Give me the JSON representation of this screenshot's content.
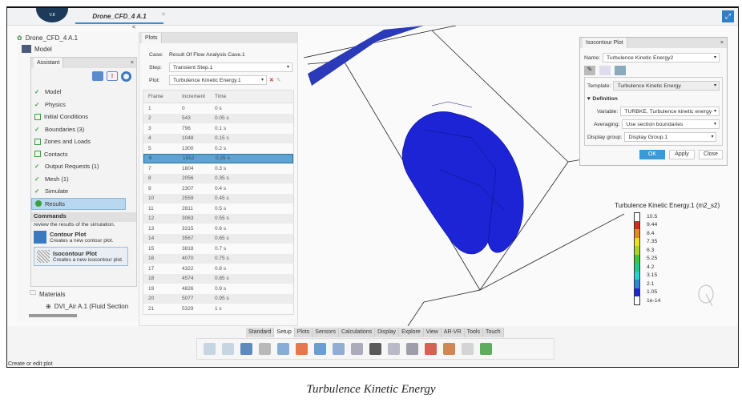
{
  "app": {
    "logo_text": "V.8",
    "document_tab": "Drone_CFD_4 A.1",
    "new_tab": "+",
    "collapse": "<",
    "status": "Create or edit plot"
  },
  "tree": {
    "root": "Drone_CFD_4 A.1",
    "model": "Model",
    "materials": "Materials",
    "material_item": "DVI_Air A.1 (Fluid Section"
  },
  "assistant": {
    "title": "Assistant",
    "close": "×",
    "steps": [
      {
        "label": "Model",
        "state": "done"
      },
      {
        "label": "Physics",
        "state": "done"
      },
      {
        "label": "Initial Conditions",
        "state": "todo"
      },
      {
        "label": "Boundaries (3)",
        "state": "done"
      },
      {
        "label": "Zones and Loads",
        "state": "todo"
      },
      {
        "label": "Contacts",
        "state": "todo"
      },
      {
        "label": "Output Requests (1)",
        "state": "done"
      },
      {
        "label": "Mesh (1)",
        "state": "done"
      },
      {
        "label": "Simulate",
        "state": "done"
      },
      {
        "label": "Results",
        "state": "active"
      }
    ],
    "commands_title": "Commands",
    "commands_desc": "review the results of the simulation.",
    "commands": [
      {
        "title": "Contour Plot",
        "desc": "Creates a new contour plot."
      },
      {
        "title": "Isocontour Plot",
        "desc": "Creates a new isocontour plot."
      }
    ]
  },
  "plots": {
    "tab": "Plots",
    "case_label": "Case:",
    "case_value": "Result Of Flow Analysis Case.1",
    "step_label": "Step:",
    "step_value": "Transient Step.1",
    "plot_label": "Plot:",
    "plot_value": "Turbulence Kinetic Energy.1",
    "columns": [
      "Frame",
      "Increment",
      "Time"
    ],
    "selected_frame": "6",
    "rows": [
      [
        "1",
        "0",
        "0 s"
      ],
      [
        "2",
        "543",
        "0.05 s"
      ],
      [
        "3",
        "796",
        "0.1 s"
      ],
      [
        "4",
        "1048",
        "0.15 s"
      ],
      [
        "5",
        "1300",
        "0.2 s"
      ],
      [
        "6",
        "1552",
        "0.25 s"
      ],
      [
        "7",
        "1804",
        "0.3 s"
      ],
      [
        "8",
        "2056",
        "0.35 s"
      ],
      [
        "9",
        "2307",
        "0.4 s"
      ],
      [
        "10",
        "2559",
        "0.45 s"
      ],
      [
        "11",
        "2811",
        "0.5 s"
      ],
      [
        "12",
        "3063",
        "0.55 s"
      ],
      [
        "13",
        "3315",
        "0.6 s"
      ],
      [
        "14",
        "3567",
        "0.65 s"
      ],
      [
        "15",
        "3818",
        "0.7 s"
      ],
      [
        "16",
        "4070",
        "0.75 s"
      ],
      [
        "17",
        "4322",
        "0.8 s"
      ],
      [
        "18",
        "4574",
        "0.85 s"
      ],
      [
        "19",
        "4826",
        "0.9 s"
      ],
      [
        "20",
        "5077",
        "0.95 s"
      ],
      [
        "21",
        "5329",
        "1 s"
      ]
    ]
  },
  "isocontour": {
    "title": "Isocontour Plot",
    "close": "×",
    "name_label": "Name:",
    "name_value": "Turbulence Kinetic Energy2",
    "template_label": "Template:",
    "template_value": "Turbulence Kinetic Energy",
    "definition": "Definition",
    "variable_label": "Variable:",
    "variable_value": "TURBKE, Turbulence kinetic energy",
    "averaging_label": "Averaging:",
    "averaging_value": "Use section boundaries",
    "display_group_label": "Display group:",
    "display_group_value": "Display Group.1",
    "ok": "OK",
    "apply": "Apply",
    "close_btn": "Close"
  },
  "legend": {
    "title": "Turbulence Kinetic Energy.1 (m2_s2)",
    "levels": [
      {
        "value": "10.5",
        "color": "#ffffff"
      },
      {
        "value": "9.44",
        "color": "#d42a1a"
      },
      {
        "value": "8.4",
        "color": "#e38a1e"
      },
      {
        "value": "7.35",
        "color": "#e8e020"
      },
      {
        "value": "6.3",
        "color": "#a8d42a"
      },
      {
        "value": "5.25",
        "color": "#3ec83c"
      },
      {
        "value": "4.2",
        "color": "#22c88a"
      },
      {
        "value": "3.15",
        "color": "#2ad0d0"
      },
      {
        "value": "2.1",
        "color": "#2a8ad8"
      },
      {
        "value": "1.05",
        "color": "#1a2ad0"
      },
      {
        "value": "1e-14",
        "color": "#ffffff"
      }
    ]
  },
  "ribbon": {
    "tabs": [
      "Standard",
      "Setup",
      "Plots",
      "Sensors",
      "Calculations",
      "Display",
      "Explore",
      "View",
      "AR-VR",
      "Tools",
      "Touch"
    ],
    "active": "Setup",
    "icons": [
      "copy-icon",
      "paste-icon",
      "undo-icon",
      "part-icon",
      "import-icon",
      "contour-icon",
      "animation-icon",
      "table-icon",
      "save-results-icon",
      "axes-icon",
      "section-icon",
      "database-icon",
      "delete-plot-icon",
      "settings-icon",
      "report-icon",
      "plugin-icon"
    ]
  },
  "caption": "Turbulence Kinetic Energy"
}
